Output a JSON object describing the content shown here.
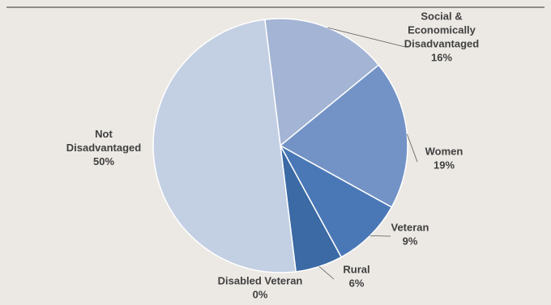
{
  "chart_data": {
    "type": "pie",
    "title": "",
    "slices": [
      {
        "label_lines": [
          "Social &",
          "Economically",
          "Disadvantaged",
          "16%"
        ],
        "value": 16,
        "color": "#a3b4d5"
      },
      {
        "label_lines": [
          "Women",
          "19%"
        ],
        "value": 19,
        "color": "#7393c6"
      },
      {
        "label_lines": [
          "Veteran",
          "9%"
        ],
        "value": 9,
        "color": "#4a78b7"
      },
      {
        "label_lines": [
          "Rural",
          "6%"
        ],
        "value": 6,
        "color": "#3b6aa4"
      },
      {
        "label_lines": [
          "Disabled Veteran",
          "0%"
        ],
        "value": 0,
        "color": "#2f5b94"
      },
      {
        "label_lines": [
          "Not",
          "Disadvantaged",
          "50%"
        ],
        "value": 50,
        "color": "#c3cfe3"
      }
    ]
  }
}
